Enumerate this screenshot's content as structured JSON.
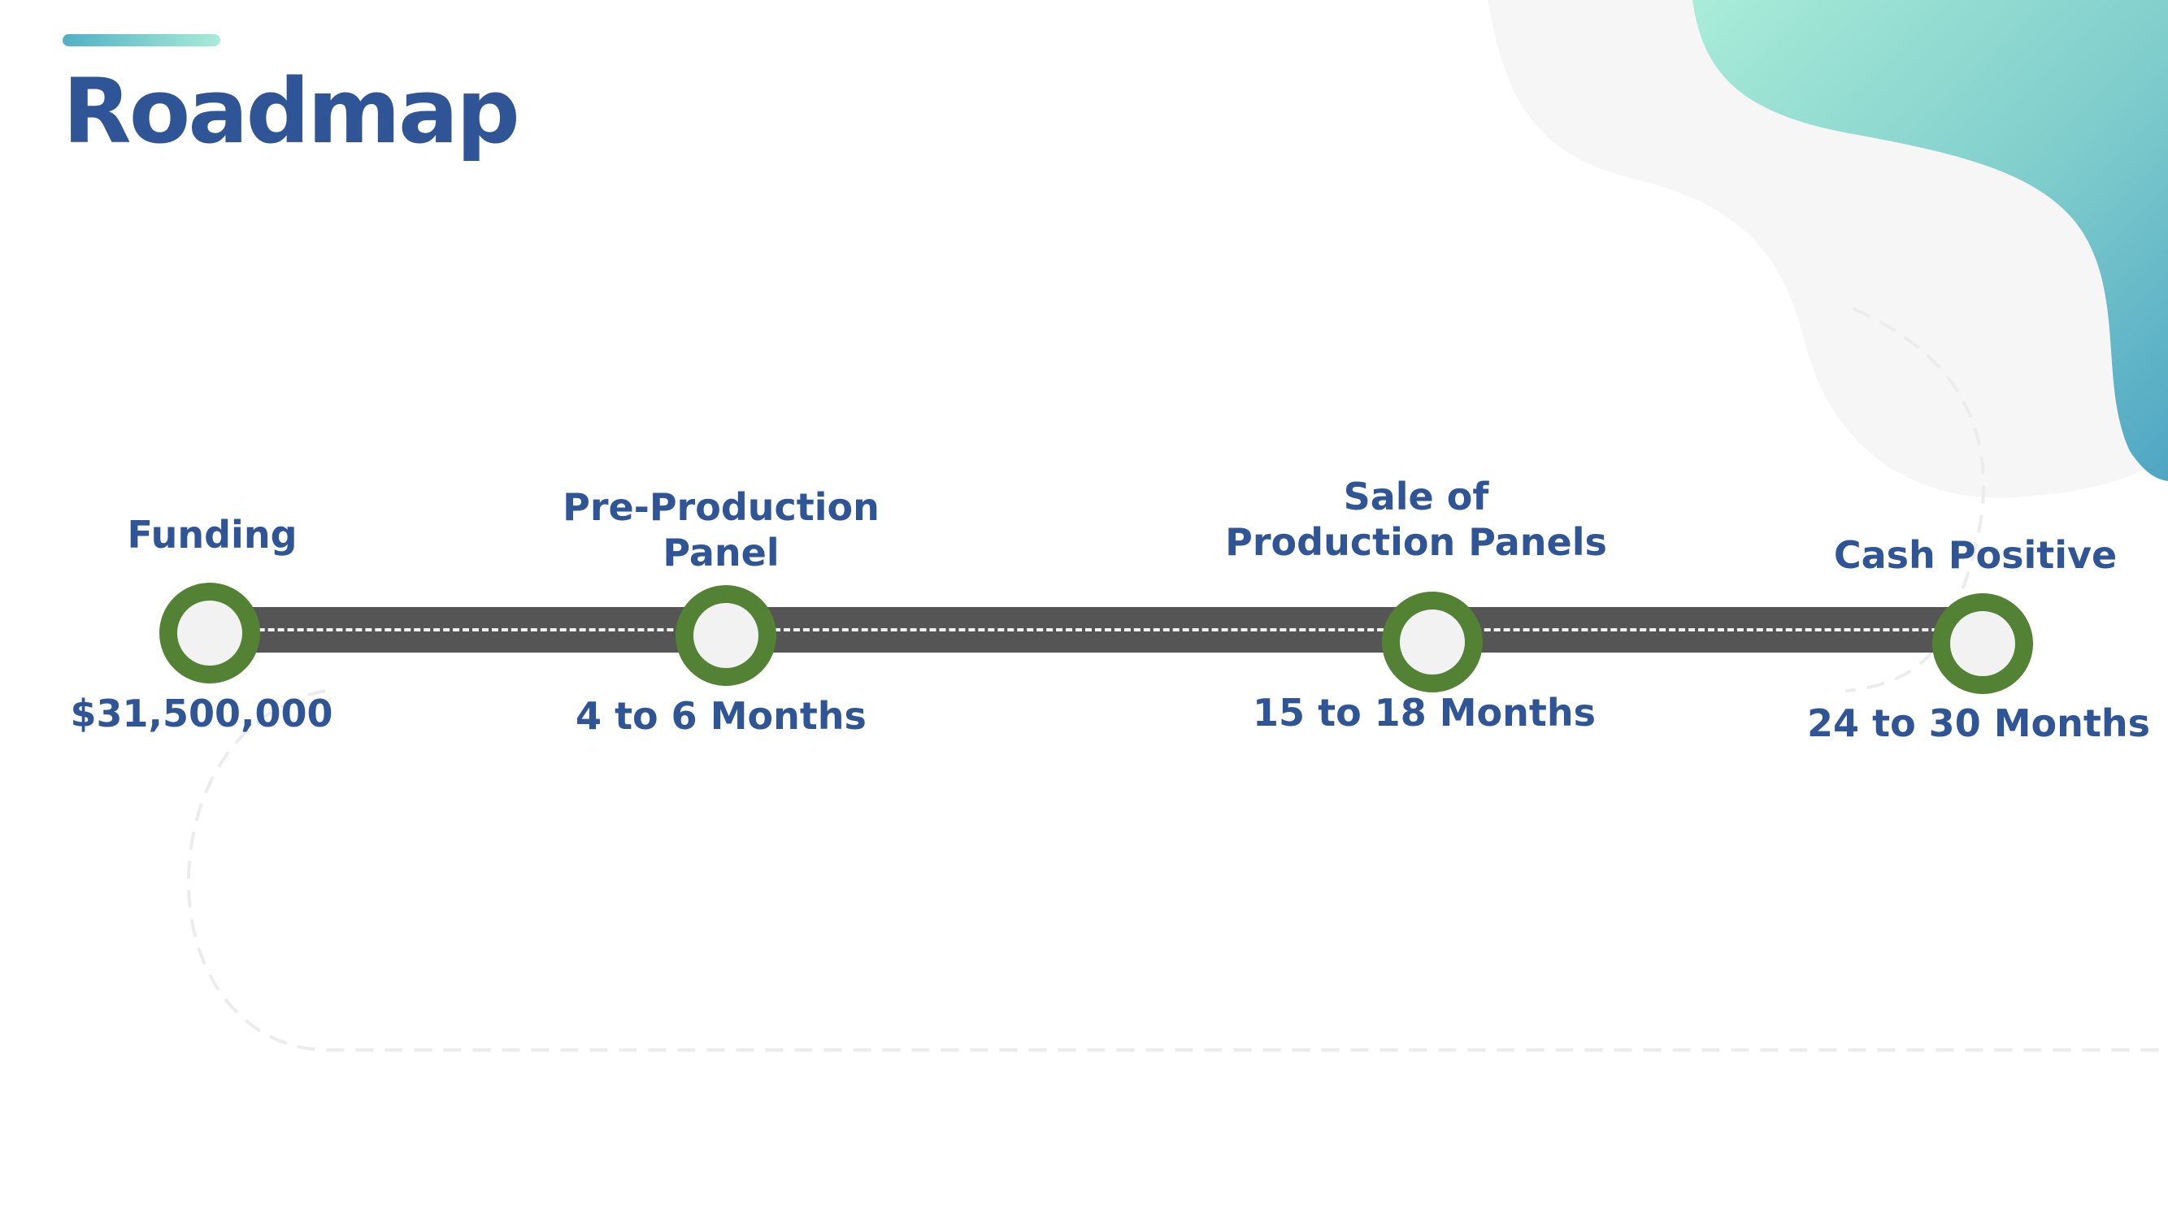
{
  "title": "Roadmap",
  "colors": {
    "title": "#2f5597",
    "road": "#555555",
    "milestone_ring": "#548235",
    "milestone_fill": "#f2f2f2",
    "accent_start": "#a9ecd8",
    "accent_end": "#4fa9c4"
  },
  "milestones": [
    {
      "label": "Funding",
      "value": "$31,500,000"
    },
    {
      "label": "Pre-Production\nPanel",
      "value": "4 to 6 Months"
    },
    {
      "label": "Sale of\nProduction Panels",
      "value": "15 to 18 Months"
    },
    {
      "label": "Cash Positive",
      "value": "24 to 30 Months"
    }
  ]
}
